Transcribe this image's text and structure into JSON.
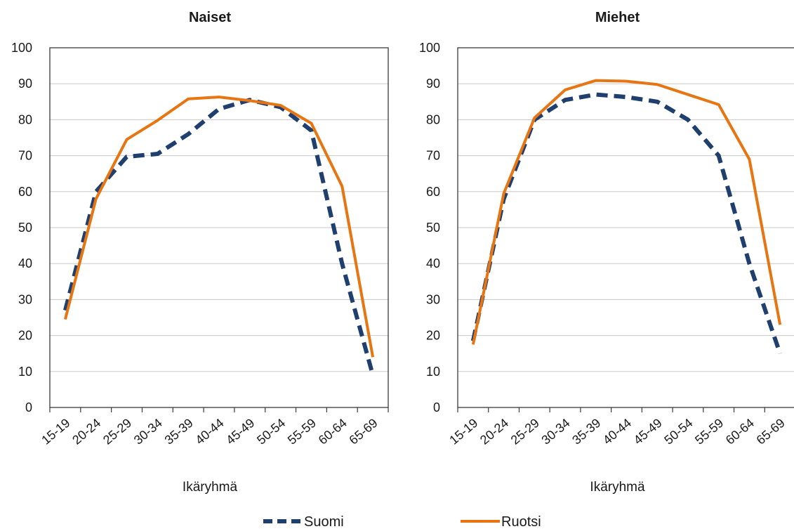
{
  "chart_data": [
    {
      "type": "line",
      "title": "Naiset",
      "xlabel": "Ikäryhmä",
      "ylabel": "",
      "ylim": [
        0,
        100
      ],
      "yticks": [
        0,
        10,
        20,
        30,
        40,
        50,
        60,
        70,
        80,
        90,
        100
      ],
      "grid": true,
      "categories": [
        "15-19",
        "20-24",
        "25-29",
        "30-34",
        "35-39",
        "40-44",
        "45-49",
        "50-54",
        "55-59",
        "60-64",
        "65-69"
      ],
      "series": [
        {
          "name": "Suomi",
          "color": "#1f3f6e",
          "dash": "dashed",
          "values": [
            27,
            60,
            69.7,
            70.5,
            76,
            83,
            85.5,
            83.5,
            77,
            40,
            9
          ]
        },
        {
          "name": "Ruotsi",
          "color": "#e67512",
          "dash": "solid",
          "values": [
            24.5,
            58,
            74.5,
            79.8,
            85.8,
            86.3,
            85.3,
            84,
            79,
            61.5,
            14
          ]
        }
      ]
    },
    {
      "type": "line",
      "title": "Miehet",
      "xlabel": "Ikäryhmä",
      "ylabel": "",
      "ylim": [
        0,
        100
      ],
      "yticks": [
        0,
        10,
        20,
        30,
        40,
        50,
        60,
        70,
        80,
        90,
        100
      ],
      "grid": true,
      "categories": [
        "15-19",
        "20-24",
        "25-29",
        "30-34",
        "35-39",
        "40-44",
        "45-49",
        "50-54",
        "55-59",
        "60-64",
        "65-69"
      ],
      "series": [
        {
          "name": "Suomi",
          "color": "#1f3f6e",
          "dash": "dashed",
          "values": [
            18.5,
            58,
            80,
            85.5,
            87,
            86.3,
            85,
            80,
            70,
            40,
            15
          ]
        },
        {
          "name": "Ruotsi",
          "color": "#e67512",
          "dash": "solid",
          "values": [
            17.5,
            59.5,
            80.5,
            88.3,
            90.9,
            90.7,
            89.8,
            87,
            84.2,
            69,
            23
          ]
        }
      ]
    }
  ],
  "legend": {
    "placement": "bottom",
    "items": [
      {
        "label": "Suomi",
        "color": "#1f3f6e",
        "dash": "dashed"
      },
      {
        "label": "Ruotsi",
        "color": "#e67512",
        "dash": "solid"
      }
    ]
  },
  "colors": {
    "grid": "#c8c8c8",
    "axis": "#3a3a3a",
    "suomi": "#1f3f6e",
    "ruotsi": "#e67512"
  }
}
